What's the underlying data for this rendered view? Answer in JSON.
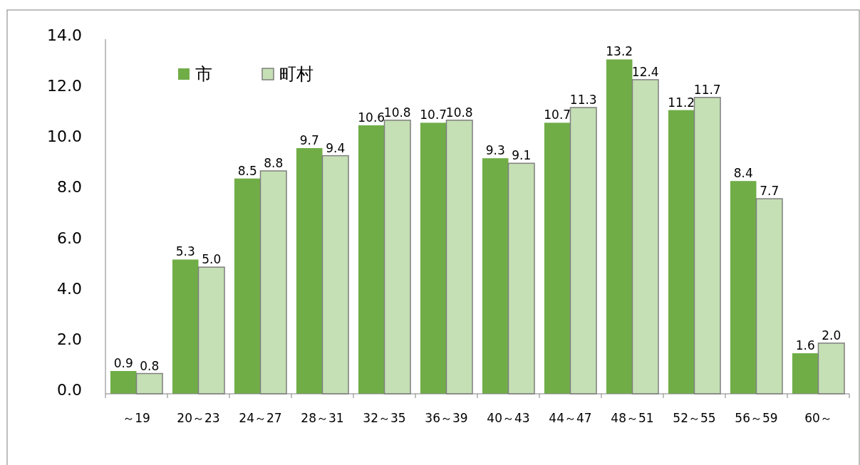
{
  "chart_data": {
    "type": "bar",
    "categories": [
      "～19",
      "20～23",
      "24～27",
      "28～31",
      "32～35",
      "36～39",
      "40～43",
      "44～47",
      "48～51",
      "52～55",
      "56～59",
      "60～"
    ],
    "series": [
      {
        "name": "市",
        "color": "#70ad47",
        "values": [
          0.9,
          5.3,
          8.5,
          9.7,
          10.6,
          10.7,
          9.3,
          10.7,
          13.2,
          11.2,
          8.4,
          1.6
        ],
        "value_labels": [
          "0.9",
          "5.3",
          "8.5",
          "9.7",
          "10.6",
          "10.7",
          "9.3",
          "10.7",
          "13.2",
          "11.2",
          "8.4",
          "1.6"
        ]
      },
      {
        "name": "町村",
        "color": "#c5e0b4",
        "values": [
          0.8,
          5.0,
          8.8,
          9.4,
          10.8,
          10.8,
          9.1,
          11.3,
          12.4,
          11.7,
          7.7,
          2.0
        ],
        "value_labels": [
          "0.8",
          "5.0",
          "8.8",
          "9.4",
          "10.8",
          "10.8",
          "9.1",
          "11.3",
          "12.4",
          "11.7",
          "7.7",
          "2.0"
        ]
      }
    ],
    "ylim": [
      0,
      14
    ],
    "yticks": [
      {
        "value": 0,
        "label": "0.0"
      },
      {
        "value": 2,
        "label": "2.0"
      },
      {
        "value": 4,
        "label": "4.0"
      },
      {
        "value": 6,
        "label": "6.0"
      },
      {
        "value": 8,
        "label": "8.0"
      },
      {
        "value": 10,
        "label": "10.0"
      },
      {
        "value": 12,
        "label": "12.0"
      },
      {
        "value": 14,
        "label": "14.0"
      }
    ],
    "grid": false,
    "legend": "top left"
  }
}
